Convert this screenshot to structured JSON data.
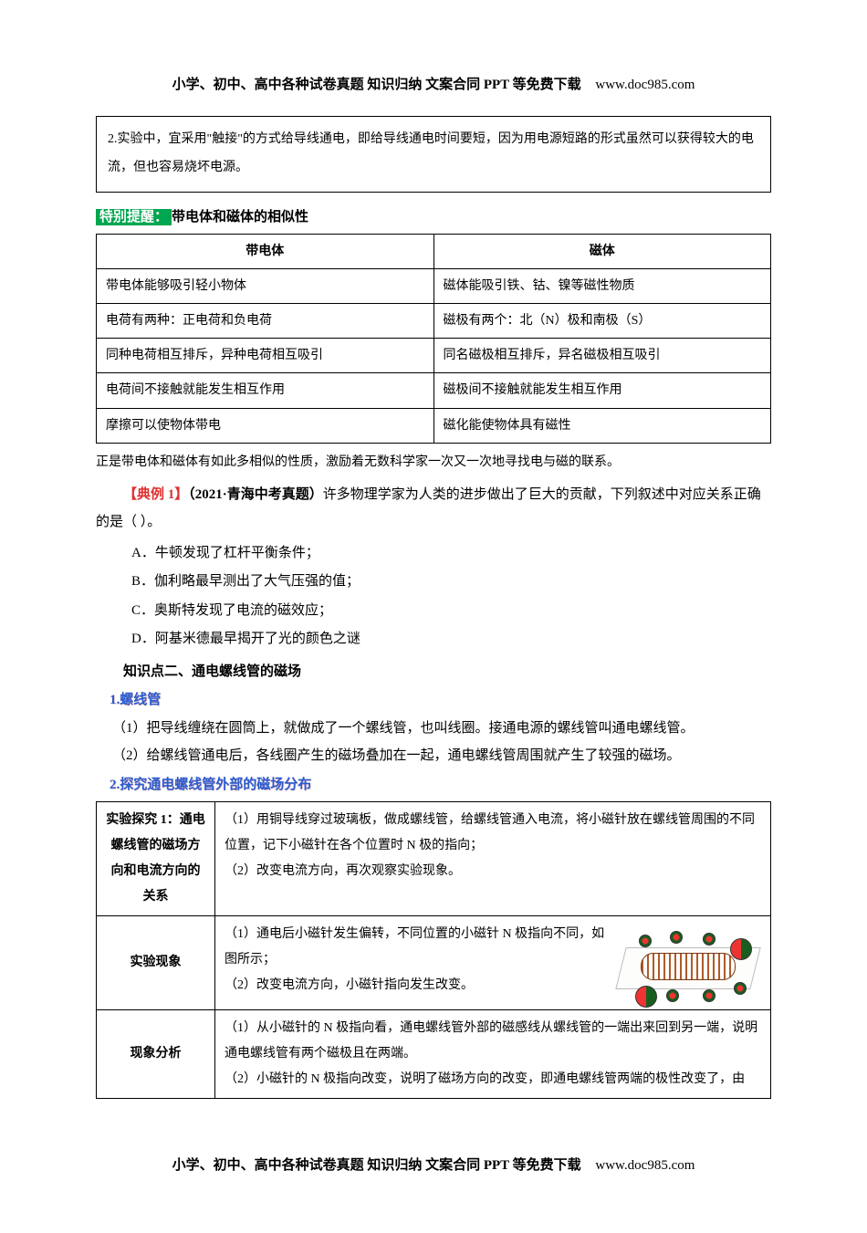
{
  "header": {
    "text": "小学、初中、高中各种试卷真题 知识归纳 文案合同 PPT 等免费下载",
    "url": "www.doc985.com"
  },
  "footer": {
    "text": "小学、初中、高中各种试卷真题 知识归纳 文案合同 PPT 等免费下载",
    "url": "www.doc985.com"
  },
  "noteBox": "2.实验中，宜采用\"触接\"的方式给导线通电，即给导线通电时间要短，因为用电源短路的形式虽然可以获得较大的电流，但也容易烧坏电源。",
  "special": {
    "tag": "特别提醒：",
    "title": "带电体和磁体的相似性"
  },
  "similarityTable": {
    "headers": [
      "带电体",
      "磁体"
    ],
    "rows": [
      [
        "带电体能够吸引轻小物体",
        "磁体能吸引铁、钴、镍等磁性物质"
      ],
      [
        "电荷有两种：正电荷和负电荷",
        "磁极有两个：北（N）极和南极（S）"
      ],
      [
        "同种电荷相互排斥，异种电荷相互吸引",
        "同名磁极相互排斥，异名磁极相互吸引"
      ],
      [
        "电荷间不接触就能发生相互作用",
        "磁极间不接触就能发生相互作用"
      ],
      [
        "摩擦可以使物体带电",
        "磁化能使物体具有磁性"
      ]
    ],
    "afterText": "正是带电体和磁体有如此多相似的性质，激励着无数科学家一次又一次地寻找电与磁的联系。"
  },
  "example": {
    "label": "【典例 1】",
    "source": "（2021·青海中考真题）",
    "stem": "许多物理学家为人类的进步做出了巨大的贡献，下列叙述中对应关系正确的是（    ）。",
    "options": {
      "A": "A．牛顿发现了杠杆平衡条件；",
      "B": "B．伽利略最早测出了大气压强的值；",
      "C": "C．奥斯特发现了电流的磁效应；",
      "D": "D．阿基米德最早揭开了光的颜色之谜"
    }
  },
  "section2": {
    "heading": "知识点二、通电螺线管的磁场",
    "sub1": {
      "title": "1.螺线管",
      "lines": [
        "（1）把导线缠绕在圆筒上，就做成了一个螺线管，也叫线圈。接通电源的螺线管叫通电螺线管。",
        "（2）给螺线管通电后，各线圈产生的磁场叠加在一起，通电螺线管周围就产生了较强的磁场。"
      ]
    },
    "sub2": {
      "title": "2.探究通电螺线管外部的磁场分布"
    }
  },
  "expTable": {
    "rows": [
      {
        "label": "实验探究 1：通电螺线管的磁场方向和电流方向的关系",
        "content": "（1）用铜导线穿过玻璃板，做成螺线管，给螺线管通入电流，将小磁针放在螺线管周围的不同位置，记下小磁针在各个位置时 N 极的指向；\n（2）改变电流方向，再次观察实验现象。"
      },
      {
        "label": "实验现象",
        "content": "（1）通电后小磁针发生偏转，不同位置的小磁针 N 极指向不同，如图所示；\n（2）改变电流方向，小磁针指向发生改变。",
        "hasImage": true
      },
      {
        "label": "现象分析",
        "content": "（1）从小磁针的 N 极指向看，通电螺线管外部的磁感线从螺线管的一端出来回到另一端，说明通电螺线管有两个磁极且在两端。\n（2）小磁针的 N 极指向改变，说明了磁场方向的改变，即通电螺线管两端的极性改变了，由"
      }
    ]
  },
  "colors": {
    "green": "#00a650",
    "blue": "#2a5dd0",
    "red": "#e03030"
  }
}
